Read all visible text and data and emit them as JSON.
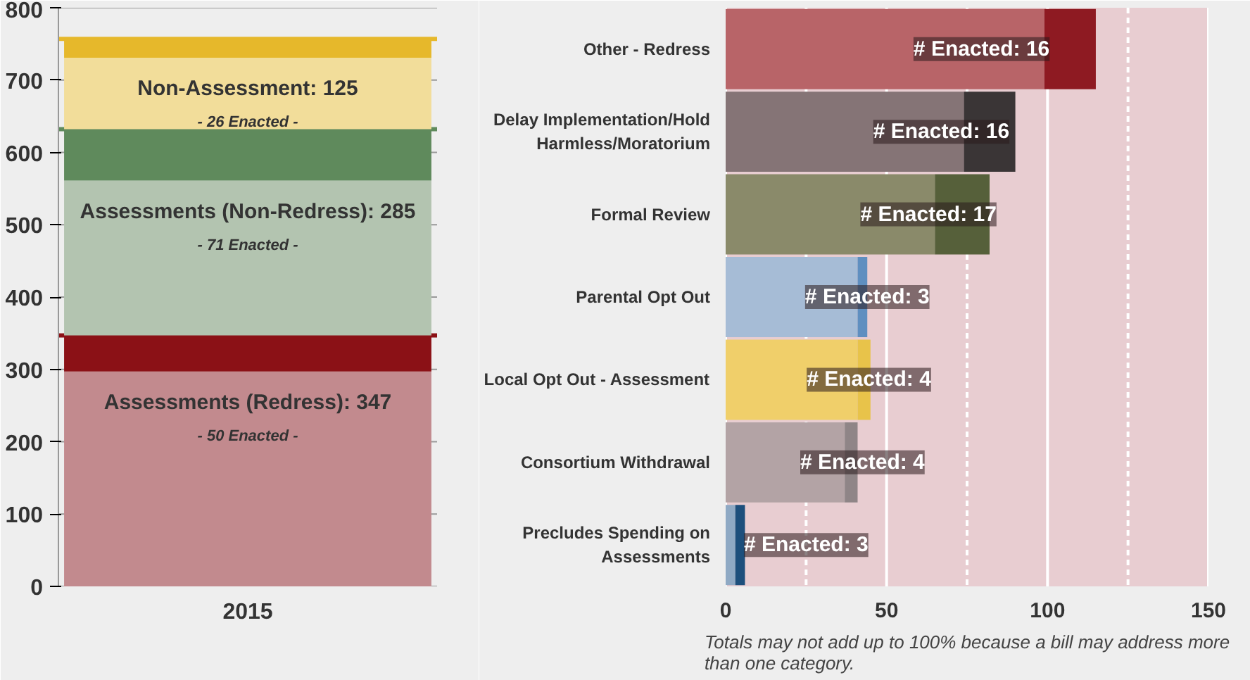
{
  "chart_data": [
    {
      "type": "bar",
      "stacked": true,
      "categories": [
        "2015"
      ],
      "series": [
        {
          "color": "#c28a8e",
          "values": [
            297
          ]
        },
        {
          "color": "#8b1116",
          "values": [
            50
          ]
        },
        {
          "color": "#b3c4b0",
          "values": [
            214
          ]
        },
        {
          "color": "#5f8a5c",
          "values": [
            71
          ]
        },
        {
          "color": "#f2dd9a",
          "values": [
            99
          ]
        },
        {
          "color": "#e6b82b",
          "values": [
            26
          ]
        }
      ],
      "ylim": [
        0,
        800
      ],
      "yticks": [
        0,
        100,
        200,
        300,
        400,
        500,
        600,
        700,
        800
      ],
      "grid": "y",
      "ref_lines": [
        {
          "axis": "y",
          "value": 347,
          "color": "#8b1116"
        },
        {
          "axis": "y",
          "value": 632,
          "color": "#5f8a5c"
        },
        {
          "axis": "y",
          "value": 757,
          "color": "#e6b82b"
        }
      ],
      "annotations": [
        "Assessments (Redress): 347",
        "- 50 Enacted -",
        "Assessments (Non-Redress): 285",
        "- 71 Enacted -",
        "Non-Assessment: 125",
        "- 26 Enacted -"
      ]
    },
    {
      "type": "bar",
      "stacked": true,
      "orientation": "horizontal",
      "categories": [
        "Other - Redress",
        "Delay Implementation/Hold Harmless/Moratorium",
        "Formal Review",
        "Parental Opt Out",
        "Local Opt Out - Assessment",
        "Consortium Withdrawal",
        "Precludes Spending on Assessments"
      ],
      "series": [
        {
          "colors": [
            "#b86468",
            "#857476",
            "#8a8a6a",
            "#a6bcd6",
            "#f0cf6a",
            "#b3a3a5",
            "#8fa9c4"
          ],
          "values": [
            99,
            74,
            65,
            41,
            41,
            37,
            3
          ]
        },
        {
          "colors": [
            "#8e1a22",
            "#3a3536",
            "#56603a",
            "#5f8fc0",
            "#e8c34a",
            "#8f8587",
            "#1d4f7c"
          ],
          "values": [
            16,
            16,
            17,
            3,
            4,
            4,
            3
          ],
          "value_labels": [
            "# Enacted: 16",
            "# Enacted: 16",
            "# Enacted: 17",
            "# Enacted: 3",
            "# Enacted: 4",
            "# Enacted: 4",
            "# Enacted: 3"
          ]
        }
      ],
      "xlim": [
        0,
        150
      ],
      "xticks": [
        0,
        {
          "value": 25,
          "label": null
        },
        50,
        {
          "value": 75,
          "label": null
        },
        100,
        {
          "value": 125,
          "label": null
        },
        150
      ],
      "grid": "x",
      "annotations": [
        "Totals may not add up to 100% because a bill may address more than one category."
      ]
    }
  ]
}
